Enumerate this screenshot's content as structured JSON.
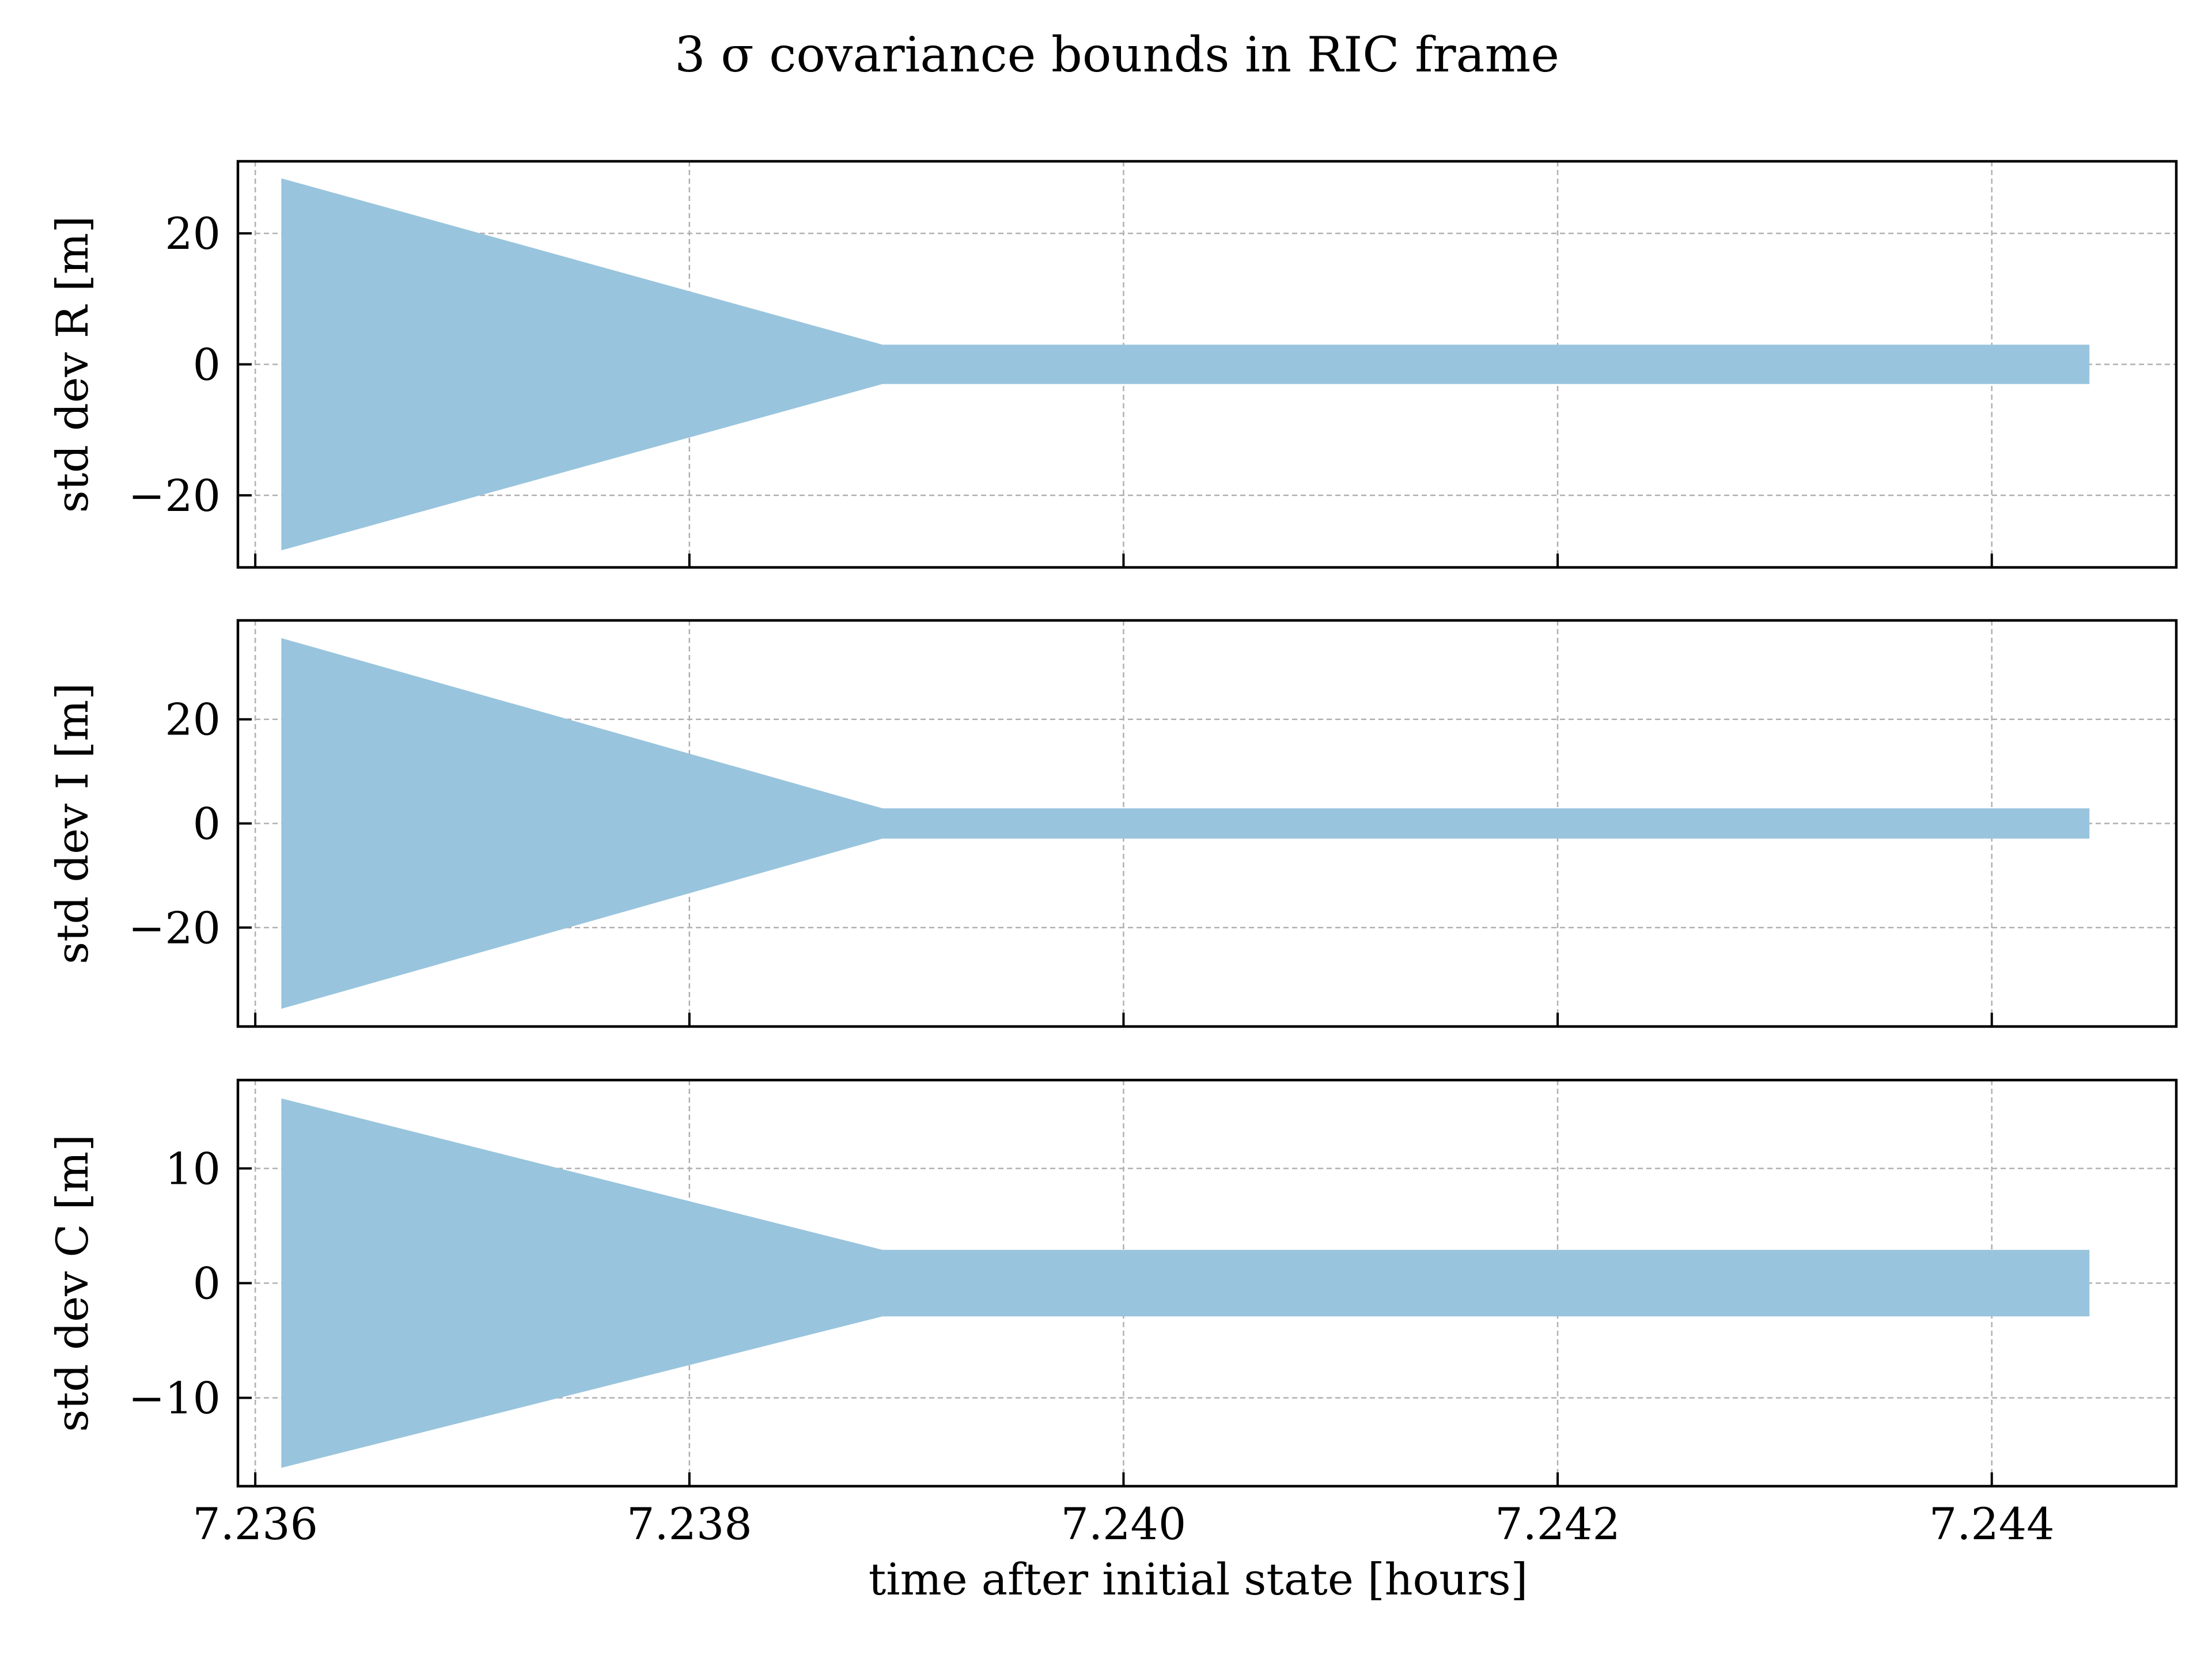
{
  "figure": {
    "title": "3 σ covariance bounds in RIC frame",
    "xlabel": "time after initial state [hours]"
  },
  "chart_data": [
    {
      "type": "area",
      "title": "",
      "xlabel": "time after initial state [hours]",
      "ylabel": "std dev R [m]",
      "xlim": [
        7.23592,
        7.24485
      ],
      "ylim": [
        -31,
        31
      ],
      "xticks": [
        7.236,
        7.238,
        7.24,
        7.242,
        7.244
      ],
      "xtick_labels": [
        "7.236",
        "7.238",
        "7.240",
        "7.242",
        "7.244"
      ],
      "yticks": [
        -20,
        0,
        20
      ],
      "ytick_labels": [
        "−20",
        "0",
        "20"
      ],
      "grid": true,
      "color": "#99c4dd",
      "band": {
        "x": [
          7.23612,
          7.23889,
          7.24445
        ],
        "upper": [
          28.4,
          3.0,
          3.0
        ],
        "lower": [
          -28.4,
          -3.0,
          -3.0
        ]
      }
    },
    {
      "type": "area",
      "title": "",
      "xlabel": "time after initial state [hours]",
      "ylabel": "std dev I [m]",
      "xlim": [
        7.23592,
        7.24485
      ],
      "ylim": [
        -39,
        39
      ],
      "xticks": [
        7.236,
        7.238,
        7.24,
        7.242,
        7.244
      ],
      "xtick_labels": [
        "7.236",
        "7.238",
        "7.240",
        "7.242",
        "7.244"
      ],
      "yticks": [
        -20,
        0,
        20
      ],
      "ytick_labels": [
        "−20",
        "0",
        "20"
      ],
      "grid": true,
      "color": "#99c4dd",
      "band": {
        "x": [
          7.23612,
          7.23889,
          7.24445
        ],
        "upper": [
          35.6,
          2.9,
          2.9
        ],
        "lower": [
          -35.6,
          -2.9,
          -2.9
        ]
      }
    },
    {
      "type": "area",
      "title": "",
      "xlabel": "time after initial state [hours]",
      "ylabel": "std dev C [m]",
      "xlim": [
        7.23592,
        7.24485
      ],
      "ylim": [
        -17.7,
        17.7
      ],
      "xticks": [
        7.236,
        7.238,
        7.24,
        7.242,
        7.244
      ],
      "xtick_labels": [
        "7.236",
        "7.238",
        "7.240",
        "7.242",
        "7.244"
      ],
      "yticks": [
        -10,
        0,
        10
      ],
      "ytick_labels": [
        "−10",
        "0",
        "10"
      ],
      "grid": true,
      "color": "#99c4dd",
      "band": {
        "x": [
          7.23612,
          7.23889,
          7.24445
        ],
        "upper": [
          16.1,
          2.9,
          2.9
        ],
        "lower": [
          -16.1,
          -2.9,
          -2.9
        ]
      }
    }
  ]
}
